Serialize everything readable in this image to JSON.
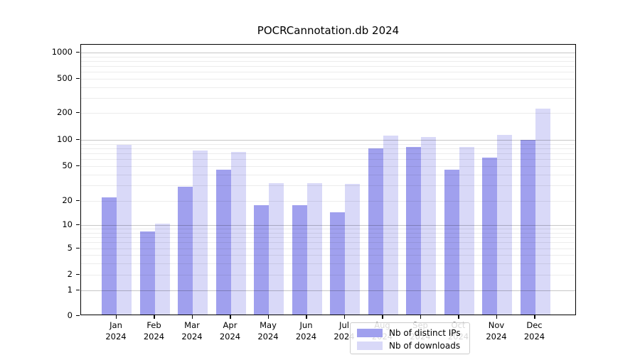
{
  "title": "POCRCannotation.db 2024",
  "chart_data": {
    "type": "bar",
    "title": "POCRCannotation.db 2024",
    "categories": [
      "Jan 2024",
      "Feb 2024",
      "Mar 2024",
      "Apr 2024",
      "May 2024",
      "Jun 2024",
      "Jul 2024",
      "Aug 2024",
      "Sep 2024",
      "Oct 2024",
      "Nov 2024",
      "Dec 2024"
    ],
    "series": [
      {
        "name": "Nb of distinct IPs",
        "color": "#a0a0ee",
        "values": [
          21,
          8,
          28,
          44,
          17,
          17,
          14,
          77,
          80,
          44,
          60,
          97
        ]
      },
      {
        "name": "Nb of downloads",
        "color": "#d9d9f8",
        "values": [
          84,
          10,
          73,
          70,
          31,
          31,
          30,
          108,
          103,
          80,
          110,
          215
        ]
      }
    ],
    "xlabel": "",
    "ylabel": "",
    "yscale": "symlog",
    "y_tick_values": [
      0,
      1,
      2,
      5,
      10,
      20,
      50,
      100,
      200,
      500,
      1000
    ],
    "y_major_gridlines": [
      1,
      10,
      100,
      1000
    ],
    "y_minor_gridlines": [
      2,
      3,
      4,
      5,
      6,
      7,
      8,
      9,
      20,
      30,
      40,
      50,
      60,
      70,
      80,
      90,
      200,
      300,
      400,
      500,
      600,
      700,
      800,
      900
    ],
    "ylim": [
      0,
      1000
    ],
    "grid": true,
    "legend_position": "lower center"
  },
  "legend": {
    "items": [
      {
        "label": "Nb of distinct IPs",
        "color": "#a0a0ee"
      },
      {
        "label": "Nb of downloads",
        "color": "#d9d9f8"
      }
    ]
  }
}
